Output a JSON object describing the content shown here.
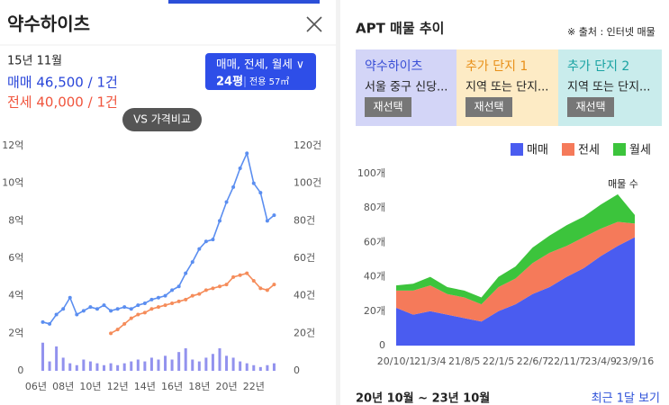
{
  "left": {
    "title": "약수하이츠",
    "date": "15년 11월",
    "sale": "매매 46,500 / 1건",
    "jeonse": "전세 40,000 / 1건",
    "filter": {
      "label": "매매, 전세, 월세 ∨",
      "size": "24평",
      "area": "전용 57㎡"
    },
    "compare": "VS 가격비교"
  },
  "right": {
    "title": "APT 매물 추이",
    "source": "※ 출처 : 인터넷 매물",
    "cards": [
      {
        "name": "약수하이츠",
        "desc": "서울 중구 신당...",
        "button": "재선택"
      },
      {
        "name": "추가 단지 1",
        "desc": "지역 또는 단지...",
        "button": "재선택"
      },
      {
        "name": "추가 단지 2",
        "desc": "지역 또는 단지...",
        "button": "재선택"
      }
    ],
    "period": "20년 10월 ~ 23년 10월",
    "recent": "최근 1달 보기"
  },
  "chart_data": [
    {
      "type": "line",
      "x": [
        2006.5,
        2007,
        2007.5,
        2008,
        2008.5,
        2009,
        2009.5,
        2010,
        2010.5,
        2011,
        2011.5,
        2012,
        2012.5,
        2013,
        2013.5,
        2014,
        2014.5,
        2015,
        2015.5,
        2016,
        2016.5,
        2017,
        2017.5,
        2018,
        2018.5,
        2019,
        2019.5,
        2020,
        2020.5,
        2021,
        2021.5,
        2022,
        2022.5,
        2023,
        2023.5
      ],
      "series": [
        {
          "name": "매매",
          "color": "#5b8ef0",
          "values": [
            2.6,
            2.5,
            3.0,
            3.3,
            3.9,
            3.0,
            3.2,
            3.4,
            3.3,
            3.5,
            3.2,
            3.3,
            3.4,
            3.3,
            3.5,
            3.6,
            3.8,
            3.9,
            4.0,
            4.3,
            4.5,
            5.2,
            5.8,
            6.5,
            6.9,
            7.0,
            8.0,
            9.0,
            9.8,
            10.8,
            11.6,
            10.0,
            9.5,
            8.0,
            8.3
          ]
        },
        {
          "name": "전세",
          "color": "#f58c5a",
          "values": [
            null,
            null,
            null,
            null,
            null,
            null,
            null,
            null,
            null,
            null,
            2.0,
            2.2,
            2.5,
            2.8,
            3.0,
            3.1,
            3.3,
            3.4,
            3.5,
            3.6,
            3.7,
            3.8,
            4.0,
            4.1,
            4.3,
            4.4,
            4.5,
            4.6,
            5.0,
            5.1,
            5.2,
            4.8,
            4.4,
            4.3,
            4.6
          ]
        },
        {
          "type": "bar",
          "axis": "y2",
          "color": "#6e6ee8",
          "values": [
            15,
            5,
            13,
            7,
            4,
            3,
            6,
            5,
            4,
            3,
            4,
            3,
            4,
            5,
            6,
            5,
            7,
            6,
            8,
            6,
            10,
            12,
            6,
            5,
            7,
            9,
            12,
            8,
            7,
            5,
            4,
            3,
            2,
            3,
            4
          ]
        }
      ],
      "xlim": [
        2005.5,
        2024
      ],
      "xticks": [
        {
          "value": 2006,
          "label": "06년"
        },
        {
          "value": 2008,
          "label": "08년"
        },
        {
          "value": 2010,
          "label": "10년"
        },
        {
          "value": 2012,
          "label": "12년"
        },
        {
          "value": 2014,
          "label": "14년"
        },
        {
          "value": 2016,
          "label": "16년"
        },
        {
          "value": 2018,
          "label": "18년"
        },
        {
          "value": 2020,
          "label": "20년"
        },
        {
          "value": 2022,
          "label": "22년"
        }
      ],
      "ylim": [
        0,
        12
      ],
      "yticks": [
        0,
        {
          "value": 2,
          "label": "2억"
        },
        {
          "value": 4,
          "label": "4억"
        },
        {
          "value": 6,
          "label": "6억"
        },
        {
          "value": 8,
          "label": "8억"
        },
        {
          "value": 10,
          "label": "10억"
        },
        {
          "value": 12,
          "label": "12억"
        }
      ],
      "y2lim": [
        0,
        120
      ],
      "y2ticks": [
        0,
        {
          "value": 20,
          "label": "20건"
        },
        {
          "value": 40,
          "label": "40건"
        },
        {
          "value": 60,
          "label": "60건"
        },
        {
          "value": 80,
          "label": "80건"
        },
        {
          "value": 100,
          "label": "100건"
        },
        {
          "value": 120,
          "label": "120건"
        }
      ]
    },
    {
      "type": "stacked_area",
      "categories": [
        "20/10/1",
        null,
        "21/3/4",
        null,
        "21/8/5",
        null,
        "22/1/5",
        null,
        "22/6/7",
        null,
        "22/11/7",
        null,
        "23/4/9",
        null,
        "23/9/16"
      ],
      "series": [
        {
          "name": "매매",
          "color": "#4a5cf0",
          "values": [
            22,
            18,
            20,
            18,
            16,
            14,
            20,
            24,
            30,
            34,
            40,
            45,
            52,
            58,
            63
          ]
        },
        {
          "name": "전세",
          "color": "#f57a5a",
          "values": [
            10,
            14,
            15,
            12,
            12,
            10,
            14,
            15,
            18,
            20,
            18,
            18,
            16,
            14,
            8
          ]
        },
        {
          "name": "월세",
          "color": "#3cc43c",
          "values": [
            3,
            4,
            5,
            4,
            4,
            4,
            6,
            7,
            9,
            10,
            12,
            12,
            14,
            16,
            5
          ]
        }
      ],
      "ylim": [
        0,
        100
      ],
      "yticks": [
        0,
        {
          "value": 20,
          "label": "20개"
        },
        {
          "value": 40,
          "label": "40개"
        },
        {
          "value": 60,
          "label": "60개"
        },
        {
          "value": 80,
          "label": "80개"
        },
        {
          "value": 100,
          "label": "100개"
        }
      ],
      "annotation": "매물 수"
    }
  ]
}
